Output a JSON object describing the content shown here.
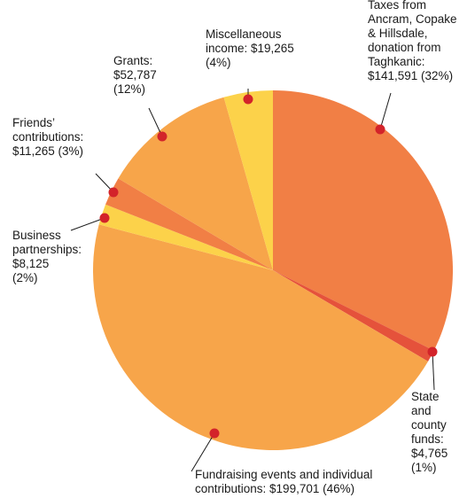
{
  "chart_data": {
    "type": "pie",
    "title": "",
    "slices": [
      {
        "name": "Taxes from Ancram, Copake & Hillsdale, donation from Taghkanic",
        "value": 141591,
        "percent": 32,
        "color": "#F17F45",
        "label_lines": [
          "Taxes from",
          "Ancram, Copake",
          "& Hillsdale,",
          "donation from",
          "Taghkanic:",
          "$141,591 (32%)"
        ]
      },
      {
        "name": "State and county funds",
        "value": 4765,
        "percent": 1,
        "color": "#E5523B",
        "label_lines": [
          "State",
          "and",
          "county",
          "funds:",
          "$4,765",
          "(1%)"
        ]
      },
      {
        "name": "Fundraising events and individual contributions",
        "value": 199701,
        "percent": 46,
        "color": "#F7A54A",
        "label_lines": [
          "Fundraising events and individual",
          "contributions: $199,701 (46%)"
        ]
      },
      {
        "name": "Business partnerships",
        "value": 8125,
        "percent": 2,
        "color": "#FCD24A",
        "label_lines": [
          "Business",
          "partnerships:",
          "$8,125",
          "(2%)"
        ]
      },
      {
        "name": "Friends' contributions",
        "value": 11265,
        "percent": 3,
        "color": "#F17F45",
        "label_lines": [
          "Friends’",
          "contributions:",
          "$11,265 (3%)"
        ]
      },
      {
        "name": "Grants",
        "value": 52787,
        "percent": 12,
        "color": "#F7A54A",
        "label_lines": [
          "Grants:",
          "$52,787",
          "(12%)"
        ]
      },
      {
        "name": "Miscellaneous income",
        "value": 19265,
        "percent": 4,
        "color": "#FCD24A",
        "label_lines": [
          "Miscellaneous",
          "income: $19,265",
          "(4%)"
        ]
      }
    ],
    "marker_color": "#D3232A",
    "leader_color": "#1a1a1a"
  }
}
